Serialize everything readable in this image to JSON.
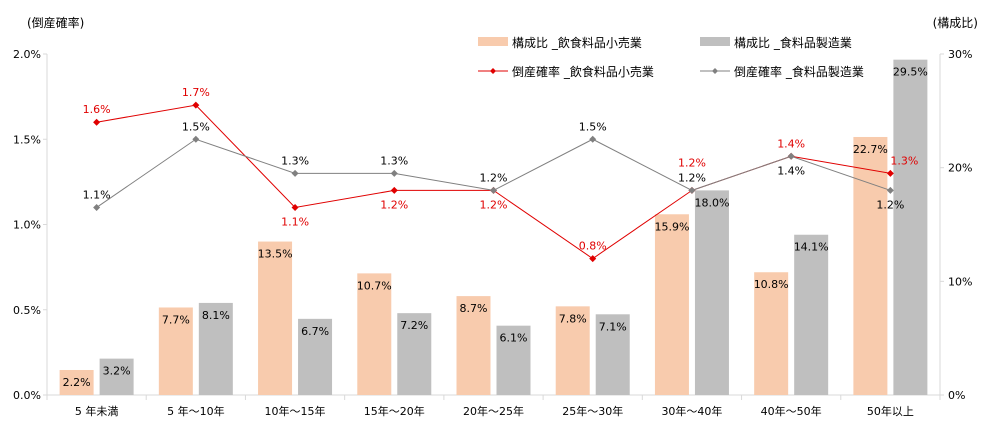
{
  "chart_data": {
    "type": "bar+line",
    "left_axis_label": "(倒産確率)",
    "right_axis_label": "(構成比)",
    "left_ylim": [
      0,
      2.0
    ],
    "left_ticks": [
      "0.0%",
      "0.5%",
      "1.0%",
      "1.5%",
      "2.0%"
    ],
    "right_ylim": [
      0,
      30
    ],
    "right_ticks": [
      "0%",
      "10%",
      "20%",
      "30%"
    ],
    "categories": [
      "5 年未満",
      "5 年〜10年",
      "10年〜15年",
      "15年〜20年",
      "20年〜25年",
      "25年〜30年",
      "30年〜40年",
      "40年〜50年",
      "50年以上"
    ],
    "legend_placement": "top-right",
    "grid": false,
    "series": [
      {
        "name": "構成比 _飲食料品小売業",
        "kind": "bar",
        "axis": "right",
        "color": "#f8cbad",
        "values": [
          2.2,
          7.7,
          13.5,
          10.7,
          8.7,
          7.8,
          15.9,
          10.8,
          22.7
        ],
        "labels": [
          "2.2%",
          "7.7%",
          "13.5%",
          "10.7%",
          "8.7%",
          "7.8%",
          "15.9%",
          "10.8%",
          "22.7%"
        ]
      },
      {
        "name": "構成比 _食料品製造業",
        "kind": "bar",
        "axis": "right",
        "color": "#bfbfbf",
        "values": [
          3.2,
          8.1,
          6.7,
          7.2,
          6.1,
          7.1,
          18.0,
          14.1,
          29.5
        ],
        "labels": [
          "3.2%",
          "8.1%",
          "6.7%",
          "7.2%",
          "6.1%",
          "7.1%",
          "18.0%",
          "14.1%",
          "29.5%"
        ]
      },
      {
        "name": "倒産確率 _飲食料品小売業",
        "kind": "line",
        "axis": "left",
        "color": "#e00000",
        "values": [
          1.6,
          1.7,
          1.1,
          1.2,
          1.2,
          0.8,
          1.2,
          1.4,
          1.3
        ],
        "labels": [
          "1.6%",
          "1.7%",
          "1.1%",
          "1.2%",
          "1.2%",
          "0.8%",
          "1.2%",
          "1.4%",
          "1.3%"
        ]
      },
      {
        "name": "倒産確率 _食料品製造業",
        "kind": "line",
        "axis": "left",
        "color": "#808080",
        "values": [
          1.1,
          1.5,
          1.3,
          1.3,
          1.2,
          1.5,
          1.2,
          1.4,
          1.2
        ],
        "labels": [
          "1.1%",
          "1.5%",
          "1.3%",
          "1.3%",
          "1.2%",
          "1.5%",
          "1.2%",
          "1.4%",
          "1.2%"
        ]
      }
    ]
  }
}
